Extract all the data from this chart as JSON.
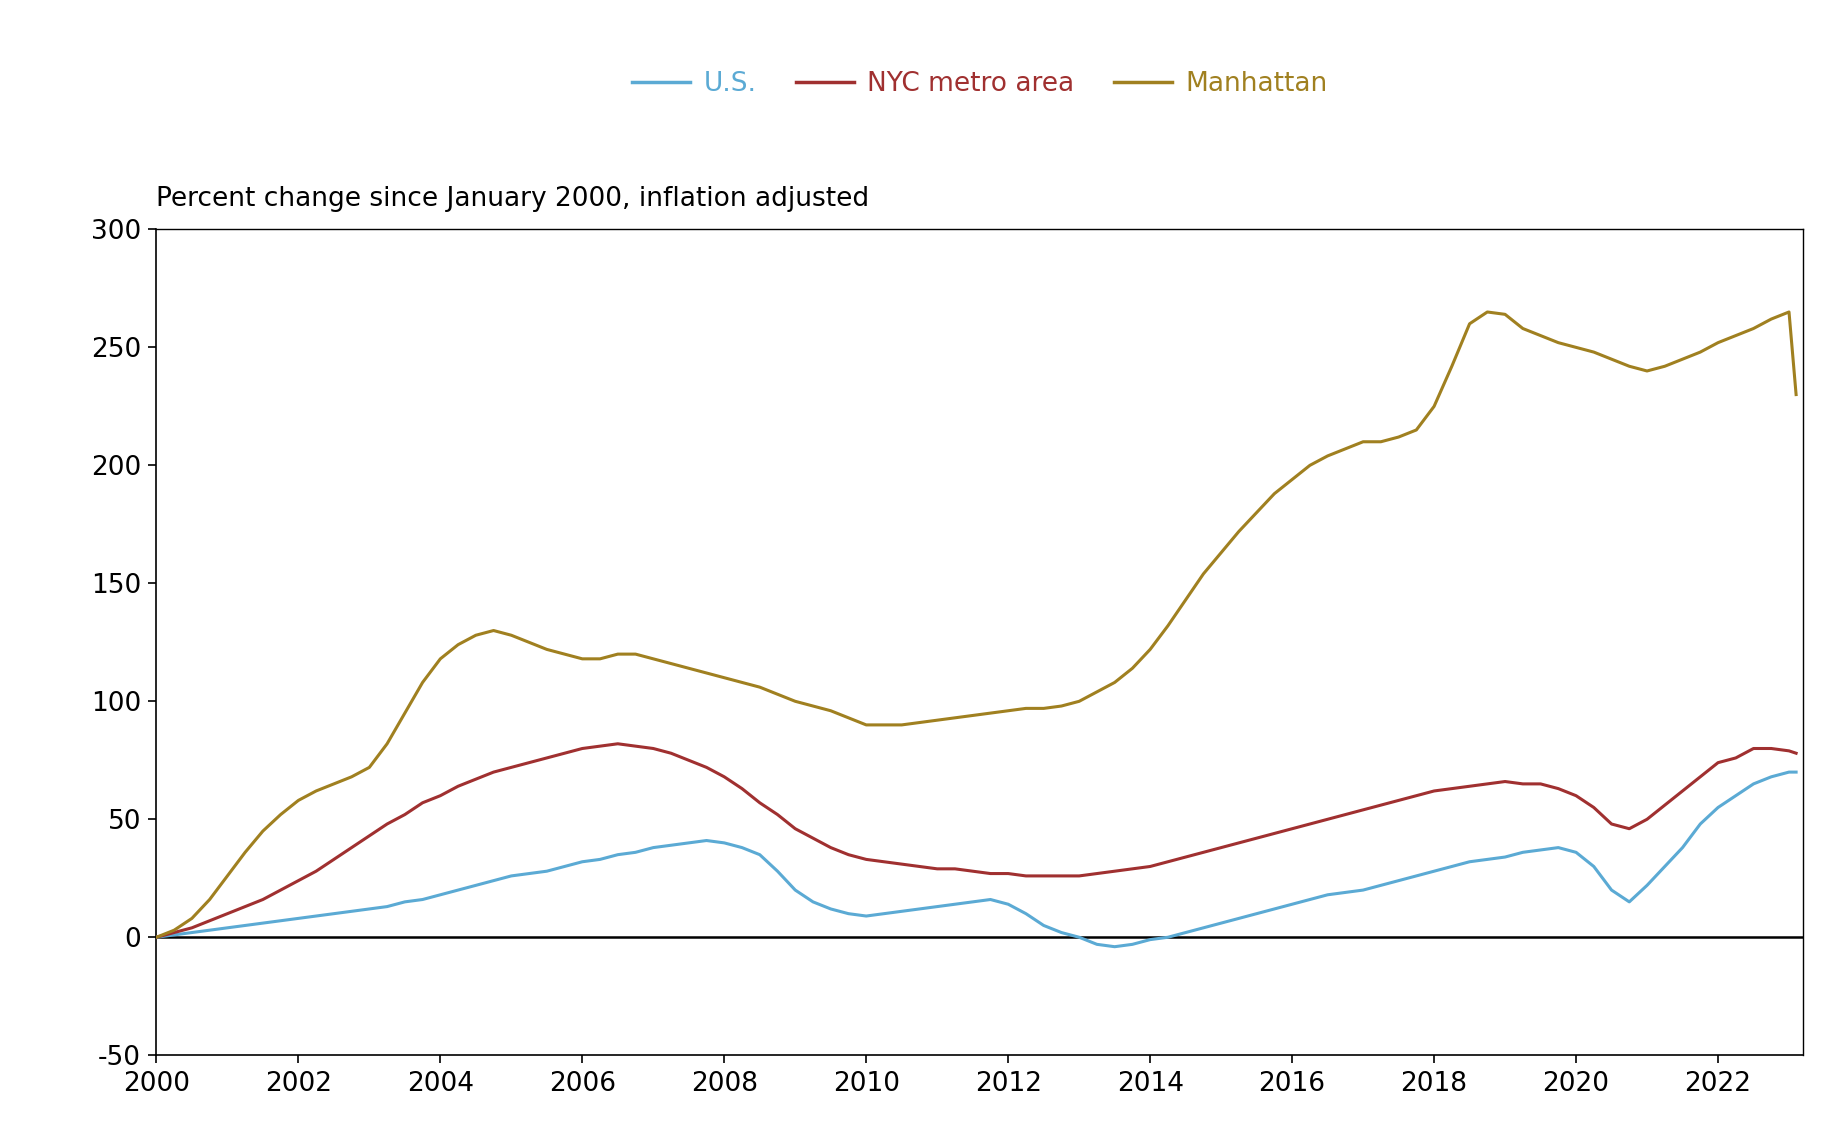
{
  "title": "Percent change since January 2000, inflation adjusted",
  "legend_labels": [
    "U.S.",
    "NYC metro area",
    "Manhattan"
  ],
  "colors": {
    "us": "#5BAAD4",
    "nyc": "#A03030",
    "manhattan": "#A08020"
  },
  "ylim": [
    -50,
    300
  ],
  "yticks": [
    -50,
    0,
    50,
    100,
    150,
    200,
    250,
    300
  ],
  "xlim": [
    2000.0,
    2023.2
  ],
  "xticks": [
    2000,
    2002,
    2004,
    2006,
    2008,
    2010,
    2012,
    2014,
    2016,
    2018,
    2020,
    2022
  ],
  "us_years": [
    2000.0,
    2000.25,
    2000.5,
    2000.75,
    2001.0,
    2001.25,
    2001.5,
    2001.75,
    2002.0,
    2002.25,
    2002.5,
    2002.75,
    2003.0,
    2003.25,
    2003.5,
    2003.75,
    2004.0,
    2004.25,
    2004.5,
    2004.75,
    2005.0,
    2005.25,
    2005.5,
    2005.75,
    2006.0,
    2006.25,
    2006.5,
    2006.75,
    2007.0,
    2007.25,
    2007.5,
    2007.75,
    2008.0,
    2008.25,
    2008.5,
    2008.75,
    2009.0,
    2009.25,
    2009.5,
    2009.75,
    2010.0,
    2010.25,
    2010.5,
    2010.75,
    2011.0,
    2011.25,
    2011.5,
    2011.75,
    2012.0,
    2012.25,
    2012.5,
    2012.75,
    2013.0,
    2013.25,
    2013.5,
    2013.75,
    2014.0,
    2014.25,
    2014.5,
    2014.75,
    2015.0,
    2015.25,
    2015.5,
    2015.75,
    2016.0,
    2016.25,
    2016.5,
    2016.75,
    2017.0,
    2017.25,
    2017.5,
    2017.75,
    2018.0,
    2018.25,
    2018.5,
    2018.75,
    2019.0,
    2019.25,
    2019.5,
    2019.75,
    2020.0,
    2020.25,
    2020.5,
    2020.75,
    2021.0,
    2021.25,
    2021.5,
    2021.75,
    2022.0,
    2022.25,
    2022.5,
    2022.75,
    2023.0,
    2023.1
  ],
  "us_values": [
    0,
    1,
    2,
    3,
    4,
    5,
    6,
    7,
    8,
    9,
    10,
    11,
    12,
    13,
    15,
    16,
    18,
    20,
    22,
    24,
    26,
    27,
    28,
    30,
    32,
    33,
    35,
    36,
    38,
    39,
    40,
    41,
    40,
    38,
    35,
    28,
    20,
    15,
    12,
    10,
    9,
    10,
    11,
    12,
    13,
    14,
    15,
    16,
    14,
    10,
    5,
    2,
    0,
    -3,
    -4,
    -3,
    -1,
    0,
    2,
    4,
    6,
    8,
    10,
    12,
    14,
    16,
    18,
    19,
    20,
    22,
    24,
    26,
    28,
    30,
    32,
    33,
    34,
    36,
    37,
    38,
    36,
    30,
    20,
    15,
    22,
    30,
    38,
    48,
    55,
    60,
    65,
    68,
    70,
    70
  ],
  "nyc_years": [
    2000.0,
    2000.25,
    2000.5,
    2000.75,
    2001.0,
    2001.25,
    2001.5,
    2001.75,
    2002.0,
    2002.25,
    2002.5,
    2002.75,
    2003.0,
    2003.25,
    2003.5,
    2003.75,
    2004.0,
    2004.25,
    2004.5,
    2004.75,
    2005.0,
    2005.25,
    2005.5,
    2005.75,
    2006.0,
    2006.25,
    2006.5,
    2006.75,
    2007.0,
    2007.25,
    2007.5,
    2007.75,
    2008.0,
    2008.25,
    2008.5,
    2008.75,
    2009.0,
    2009.25,
    2009.5,
    2009.75,
    2010.0,
    2010.25,
    2010.5,
    2010.75,
    2011.0,
    2011.25,
    2011.5,
    2011.75,
    2012.0,
    2012.25,
    2012.5,
    2012.75,
    2013.0,
    2013.25,
    2013.5,
    2013.75,
    2014.0,
    2014.25,
    2014.5,
    2014.75,
    2015.0,
    2015.25,
    2015.5,
    2015.75,
    2016.0,
    2016.25,
    2016.5,
    2016.75,
    2017.0,
    2017.25,
    2017.5,
    2017.75,
    2018.0,
    2018.25,
    2018.5,
    2018.75,
    2019.0,
    2019.25,
    2019.5,
    2019.75,
    2020.0,
    2020.25,
    2020.5,
    2020.75,
    2021.0,
    2021.25,
    2021.5,
    2021.75,
    2022.0,
    2022.25,
    2022.5,
    2022.75,
    2023.0,
    2023.1
  ],
  "nyc_values": [
    0,
    2,
    4,
    7,
    10,
    13,
    16,
    20,
    24,
    28,
    33,
    38,
    43,
    48,
    52,
    57,
    60,
    64,
    67,
    70,
    72,
    74,
    76,
    78,
    80,
    81,
    82,
    81,
    80,
    78,
    75,
    72,
    68,
    63,
    57,
    52,
    46,
    42,
    38,
    35,
    33,
    32,
    31,
    30,
    29,
    29,
    28,
    27,
    27,
    26,
    26,
    26,
    26,
    27,
    28,
    29,
    30,
    32,
    34,
    36,
    38,
    40,
    42,
    44,
    46,
    48,
    50,
    52,
    54,
    56,
    58,
    60,
    62,
    63,
    64,
    65,
    66,
    65,
    65,
    63,
    60,
    55,
    48,
    46,
    50,
    56,
    62,
    68,
    74,
    76,
    80,
    80,
    79,
    78
  ],
  "manhattan_years": [
    2000.0,
    2000.25,
    2000.5,
    2000.75,
    2001.0,
    2001.25,
    2001.5,
    2001.75,
    2002.0,
    2002.25,
    2002.5,
    2002.75,
    2003.0,
    2003.25,
    2003.5,
    2003.75,
    2004.0,
    2004.25,
    2004.5,
    2004.75,
    2005.0,
    2005.25,
    2005.5,
    2005.75,
    2006.0,
    2006.25,
    2006.5,
    2006.75,
    2007.0,
    2007.25,
    2007.5,
    2007.75,
    2008.0,
    2008.25,
    2008.5,
    2008.75,
    2009.0,
    2009.25,
    2009.5,
    2009.75,
    2010.0,
    2010.25,
    2010.5,
    2010.75,
    2011.0,
    2011.25,
    2011.5,
    2011.75,
    2012.0,
    2012.25,
    2012.5,
    2012.75,
    2013.0,
    2013.25,
    2013.5,
    2013.75,
    2014.0,
    2014.25,
    2014.5,
    2014.75,
    2015.0,
    2015.25,
    2015.5,
    2015.75,
    2016.0,
    2016.25,
    2016.5,
    2016.75,
    2017.0,
    2017.25,
    2017.5,
    2017.75,
    2018.0,
    2018.25,
    2018.5,
    2018.75,
    2019.0,
    2019.25,
    2019.5,
    2019.75,
    2020.0,
    2020.25,
    2020.5,
    2020.75,
    2021.0,
    2021.25,
    2021.5,
    2021.75,
    2022.0,
    2022.25,
    2022.5,
    2022.75,
    2023.0,
    2023.1
  ],
  "manhattan_values": [
    0,
    3,
    8,
    16,
    26,
    36,
    45,
    52,
    58,
    62,
    65,
    68,
    72,
    82,
    95,
    108,
    118,
    124,
    128,
    130,
    128,
    125,
    122,
    120,
    118,
    118,
    120,
    120,
    118,
    116,
    114,
    112,
    110,
    108,
    106,
    103,
    100,
    98,
    96,
    93,
    90,
    90,
    90,
    91,
    92,
    93,
    94,
    95,
    96,
    97,
    97,
    98,
    100,
    104,
    108,
    114,
    122,
    132,
    143,
    154,
    163,
    172,
    180,
    188,
    194,
    200,
    204,
    207,
    210,
    210,
    212,
    215,
    225,
    242,
    260,
    265,
    264,
    258,
    255,
    252,
    250,
    248,
    245,
    242,
    240,
    242,
    245,
    248,
    252,
    255,
    258,
    262,
    265,
    230
  ]
}
